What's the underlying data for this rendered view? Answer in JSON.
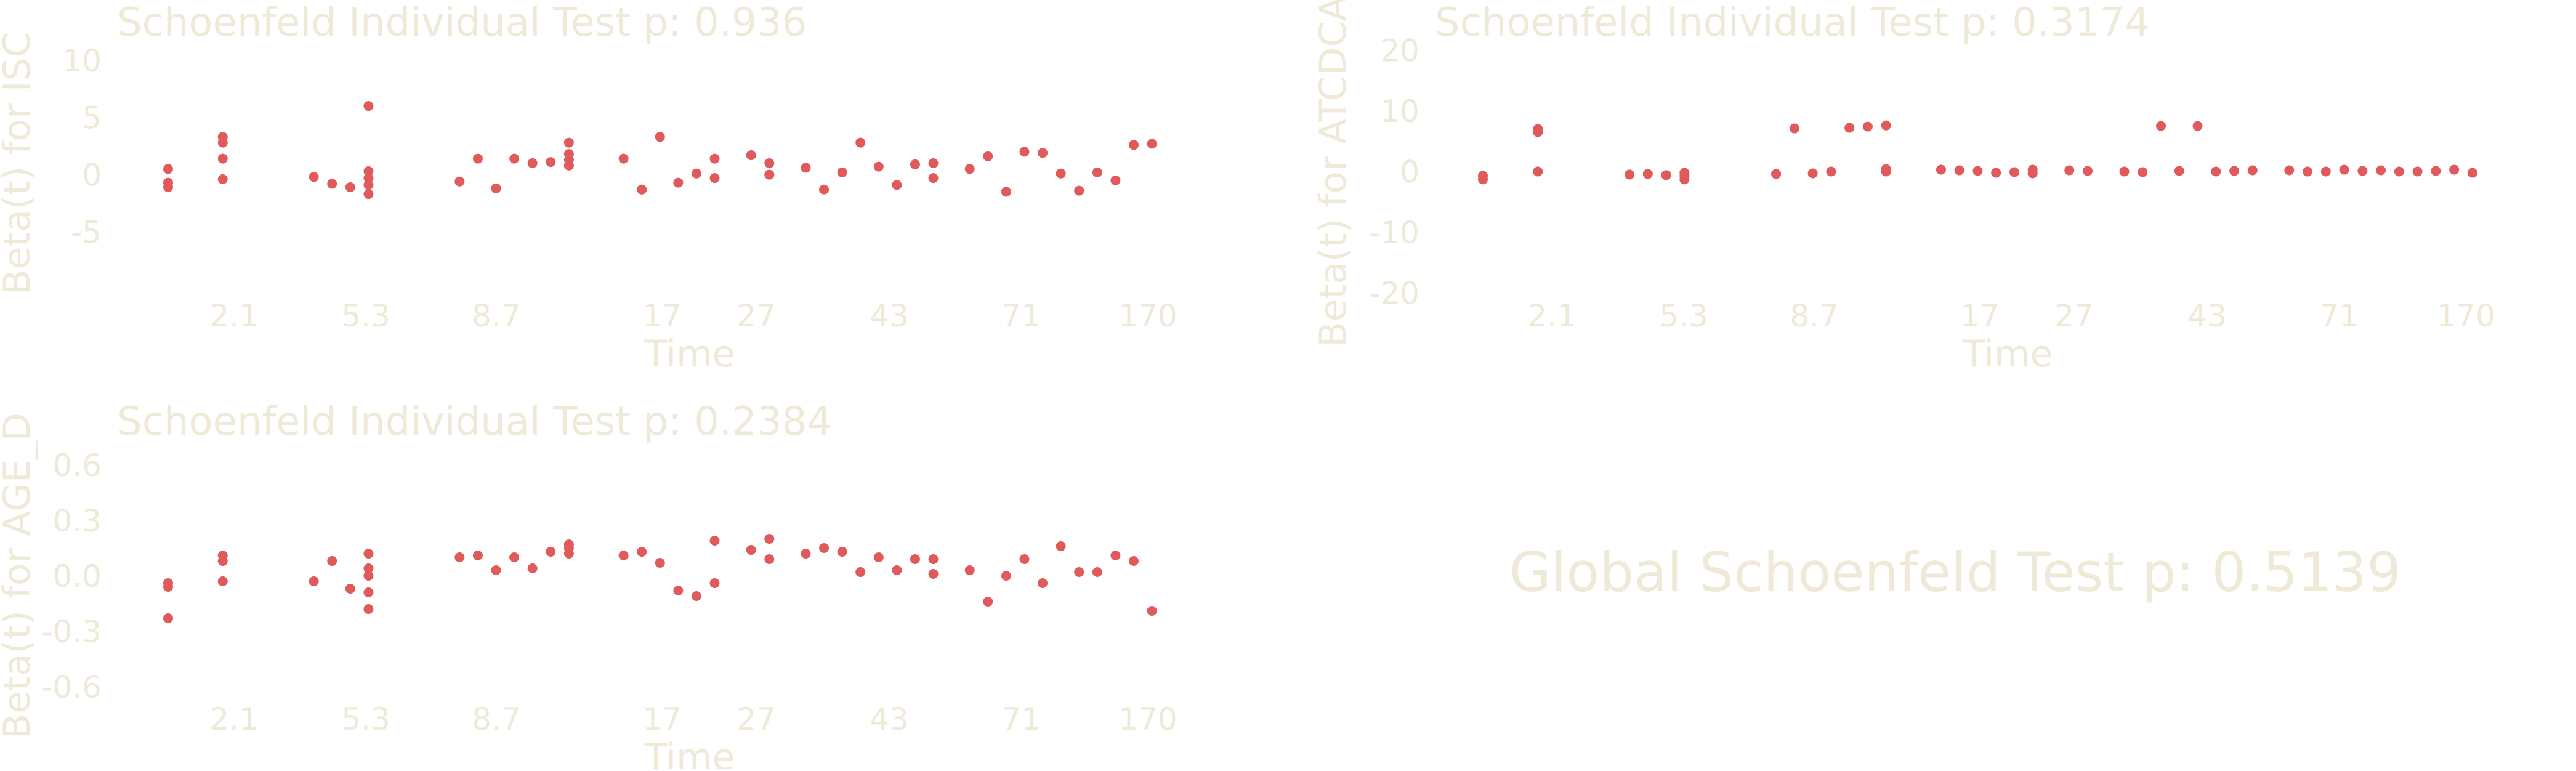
{
  "theme": {
    "text_color": "#efe9d8",
    "point_color": "#e05a5c"
  },
  "global_test": {
    "label": "Global Schoenfeld Test p: 0.5139"
  },
  "chart_data": [
    {
      "type": "scatter",
      "title": "Schoenfeld Individual Test p: 0.936",
      "xlabel": "Time",
      "ylabel": "Beta(t) for ISC",
      "x_ticks": [
        "2.1",
        "5.3",
        "8.7",
        "17",
        "27",
        "43",
        "71",
        "170"
      ],
      "y_ticks": [
        10,
        5,
        0,
        -5
      ],
      "ylim": [
        -9.5,
        11.5
      ],
      "grid": false,
      "x_rank_max": 58,
      "points": [
        {
          "x": 1,
          "y": 0.5
        },
        {
          "x": 1,
          "y": -0.7
        },
        {
          "x": 1,
          "y": -1.1
        },
        {
          "x": 4,
          "y": 3.3
        },
        {
          "x": 4,
          "y": 2.8
        },
        {
          "x": 4,
          "y": 1.4
        },
        {
          "x": 4,
          "y": -0.4
        },
        {
          "x": 9,
          "y": -0.2
        },
        {
          "x": 10,
          "y": -0.8
        },
        {
          "x": 11,
          "y": -1.1
        },
        {
          "x": 12,
          "y": 6.0
        },
        {
          "x": 12,
          "y": 0.3
        },
        {
          "x": 12,
          "y": -0.3
        },
        {
          "x": 12,
          "y": -0.9
        },
        {
          "x": 12,
          "y": -1.7
        },
        {
          "x": 17,
          "y": -0.6
        },
        {
          "x": 18,
          "y": 1.4
        },
        {
          "x": 19,
          "y": -1.2
        },
        {
          "x": 20,
          "y": 1.4
        },
        {
          "x": 21,
          "y": 1.0
        },
        {
          "x": 22,
          "y": 1.1
        },
        {
          "x": 23,
          "y": 2.8
        },
        {
          "x": 23,
          "y": 1.8
        },
        {
          "x": 23,
          "y": 1.3
        },
        {
          "x": 23,
          "y": 0.8
        },
        {
          "x": 26,
          "y": 1.4
        },
        {
          "x": 27,
          "y": -1.3
        },
        {
          "x": 28,
          "y": 3.3
        },
        {
          "x": 29,
          "y": -0.7
        },
        {
          "x": 30,
          "y": 0.1
        },
        {
          "x": 31,
          "y": 1.4
        },
        {
          "x": 31,
          "y": -0.3
        },
        {
          "x": 33,
          "y": 1.7
        },
        {
          "x": 34,
          "y": 1.0
        },
        {
          "x": 34,
          "y": 0.0
        },
        {
          "x": 36,
          "y": 0.6
        },
        {
          "x": 37,
          "y": -1.3
        },
        {
          "x": 38,
          "y": 0.2
        },
        {
          "x": 39,
          "y": 2.8
        },
        {
          "x": 40,
          "y": 0.7
        },
        {
          "x": 41,
          "y": -0.9
        },
        {
          "x": 42,
          "y": 0.9
        },
        {
          "x": 43,
          "y": 1.0
        },
        {
          "x": 43,
          "y": -0.3
        },
        {
          "x": 45,
          "y": 0.5
        },
        {
          "x": 46,
          "y": 1.6
        },
        {
          "x": 47,
          "y": -1.5
        },
        {
          "x": 48,
          "y": 2.0
        },
        {
          "x": 49,
          "y": 1.9
        },
        {
          "x": 50,
          "y": 0.1
        },
        {
          "x": 51,
          "y": -1.4
        },
        {
          "x": 52,
          "y": 0.2
        },
        {
          "x": 53,
          "y": -0.5
        },
        {
          "x": 54,
          "y": 2.6
        },
        {
          "x": 55,
          "y": 2.7
        }
      ]
    },
    {
      "type": "scatter",
      "title": "Schoenfeld Individual Test p: 0.3174",
      "xlabel": "Time",
      "ylabel": "Beta(t) for ATCDCA",
      "x_ticks": [
        "2.1",
        "5.3",
        "8.7",
        "17",
        "27",
        "43",
        "71",
        "170"
      ],
      "y_ticks": [
        20,
        10,
        0,
        -10,
        -20
      ],
      "ylim": [
        -24,
        24
      ],
      "grid": false,
      "x_rank_max": 58,
      "points": [
        {
          "x": 1,
          "y": -0.7
        },
        {
          "x": 1,
          "y": -1.3
        },
        {
          "x": 4,
          "y": 7.0
        },
        {
          "x": 4,
          "y": 6.5
        },
        {
          "x": 4,
          "y": 0.0
        },
        {
          "x": 9,
          "y": -0.5
        },
        {
          "x": 10,
          "y": -0.4
        },
        {
          "x": 11,
          "y": -0.6
        },
        {
          "x": 12,
          "y": -0.2
        },
        {
          "x": 12,
          "y": -0.7
        },
        {
          "x": 12,
          "y": -1.3
        },
        {
          "x": 17,
          "y": -0.4
        },
        {
          "x": 18,
          "y": 7.1
        },
        {
          "x": 19,
          "y": -0.3
        },
        {
          "x": 20,
          "y": 0.0
        },
        {
          "x": 21,
          "y": 7.2
        },
        {
          "x": 22,
          "y": 7.4
        },
        {
          "x": 23,
          "y": 7.6
        },
        {
          "x": 23,
          "y": 0.4
        },
        {
          "x": 23,
          "y": 0.0
        },
        {
          "x": 26,
          "y": 0.3
        },
        {
          "x": 27,
          "y": 0.2
        },
        {
          "x": 28,
          "y": 0.1
        },
        {
          "x": 29,
          "y": -0.2
        },
        {
          "x": 30,
          "y": -0.1
        },
        {
          "x": 31,
          "y": 0.3
        },
        {
          "x": 31,
          "y": -0.3
        },
        {
          "x": 33,
          "y": 0.2
        },
        {
          "x": 34,
          "y": 0.1
        },
        {
          "x": 36,
          "y": 0.0
        },
        {
          "x": 37,
          "y": -0.1
        },
        {
          "x": 38,
          "y": 7.5
        },
        {
          "x": 39,
          "y": 0.1
        },
        {
          "x": 40,
          "y": 7.5
        },
        {
          "x": 41,
          "y": 0.0
        },
        {
          "x": 42,
          "y": 0.1
        },
        {
          "x": 43,
          "y": 0.2
        },
        {
          "x": 45,
          "y": 0.2
        },
        {
          "x": 46,
          "y": 0.0
        },
        {
          "x": 47,
          "y": 0.0
        },
        {
          "x": 48,
          "y": 0.3
        },
        {
          "x": 49,
          "y": 0.1
        },
        {
          "x": 50,
          "y": 0.2
        },
        {
          "x": 51,
          "y": 0.0
        },
        {
          "x": 52,
          "y": 0.0
        },
        {
          "x": 53,
          "y": 0.1
        },
        {
          "x": 54,
          "y": 0.3
        },
        {
          "x": 55,
          "y": -0.2
        }
      ]
    },
    {
      "type": "scatter",
      "title": "Schoenfeld Individual Test p: 0.2384",
      "xlabel": "Time",
      "ylabel": "Beta(t) for AGE_D",
      "x_ticks": [
        "2.1",
        "5.3",
        "8.7",
        "17",
        "27",
        "43",
        "71",
        "170"
      ],
      "y_ticks": [
        "0.6",
        "0.3",
        "0.0",
        "-0.3",
        "-0.6"
      ],
      "ylim": [
        -0.75,
        0.75
      ],
      "grid": false,
      "x_rank_max": 58,
      "points": [
        {
          "x": 1,
          "y": -0.04
        },
        {
          "x": 1,
          "y": -0.06
        },
        {
          "x": 1,
          "y": -0.23
        },
        {
          "x": 4,
          "y": 0.11
        },
        {
          "x": 4,
          "y": 0.08
        },
        {
          "x": 4,
          "y": -0.03
        },
        {
          "x": 9,
          "y": -0.03
        },
        {
          "x": 10,
          "y": 0.08
        },
        {
          "x": 11,
          "y": -0.07
        },
        {
          "x": 12,
          "y": 0.12
        },
        {
          "x": 12,
          "y": 0.04
        },
        {
          "x": 12,
          "y": 0.0
        },
        {
          "x": 12,
          "y": -0.09
        },
        {
          "x": 12,
          "y": -0.18
        },
        {
          "x": 17,
          "y": 0.1
        },
        {
          "x": 18,
          "y": 0.11
        },
        {
          "x": 19,
          "y": 0.03
        },
        {
          "x": 20,
          "y": 0.1
        },
        {
          "x": 21,
          "y": 0.04
        },
        {
          "x": 22,
          "y": 0.13
        },
        {
          "x": 23,
          "y": 0.17
        },
        {
          "x": 23,
          "y": 0.15
        },
        {
          "x": 23,
          "y": 0.12
        },
        {
          "x": 26,
          "y": 0.11
        },
        {
          "x": 27,
          "y": 0.13
        },
        {
          "x": 28,
          "y": 0.07
        },
        {
          "x": 29,
          "y": -0.08
        },
        {
          "x": 30,
          "y": -0.11
        },
        {
          "x": 31,
          "y": 0.19
        },
        {
          "x": 31,
          "y": -0.04
        },
        {
          "x": 33,
          "y": 0.14
        },
        {
          "x": 34,
          "y": 0.2
        },
        {
          "x": 34,
          "y": 0.09
        },
        {
          "x": 36,
          "y": 0.12
        },
        {
          "x": 37,
          "y": 0.15
        },
        {
          "x": 38,
          "y": 0.13
        },
        {
          "x": 39,
          "y": 0.02
        },
        {
          "x": 40,
          "y": 0.1
        },
        {
          "x": 41,
          "y": 0.03
        },
        {
          "x": 42,
          "y": 0.09
        },
        {
          "x": 43,
          "y": 0.09
        },
        {
          "x": 43,
          "y": 0.01
        },
        {
          "x": 45,
          "y": 0.03
        },
        {
          "x": 46,
          "y": -0.14
        },
        {
          "x": 47,
          "y": 0.0
        },
        {
          "x": 48,
          "y": 0.09
        },
        {
          "x": 49,
          "y": -0.04
        },
        {
          "x": 50,
          "y": 0.16
        },
        {
          "x": 51,
          "y": 0.02
        },
        {
          "x": 52,
          "y": 0.02
        },
        {
          "x": 53,
          "y": 0.11
        },
        {
          "x": 54,
          "y": 0.08
        },
        {
          "x": 55,
          "y": -0.19
        }
      ]
    }
  ]
}
